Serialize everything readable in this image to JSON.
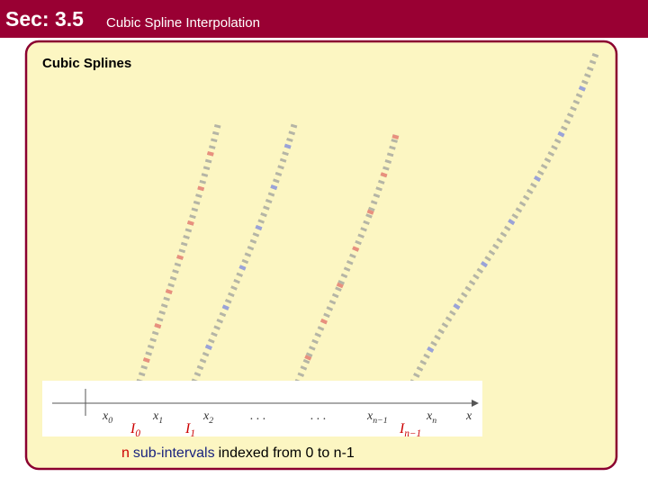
{
  "header": {
    "section": "Sec: 3.5",
    "title": "Cubic Spline Interpolation"
  },
  "panel": {
    "title": "Cubic Splines",
    "figure": {
      "axis_labels": [
        {
          "base": "x",
          "sub": "0"
        },
        {
          "base": "x",
          "sub": "1"
        },
        {
          "base": "x",
          "sub": "2"
        },
        {
          "base": ". . ."
        },
        {
          "base": ". . ."
        },
        {
          "base": "x",
          "sub": "n−1"
        },
        {
          "base": "x",
          "sub": "n"
        },
        {
          "base": "x"
        }
      ],
      "interval_labels": [
        {
          "base": "I",
          "sub": "0"
        },
        {
          "base": "I",
          "sub": "1"
        },
        {
          "base": "I",
          "sub": "n−1"
        }
      ]
    },
    "caption": [
      {
        "text": "n",
        "color": "#cc0000"
      },
      {
        "text": "sub-intervals",
        "color": "#1a237e"
      },
      {
        "text": "indexed from 0 to n-1",
        "color": "#000000"
      }
    ]
  }
}
